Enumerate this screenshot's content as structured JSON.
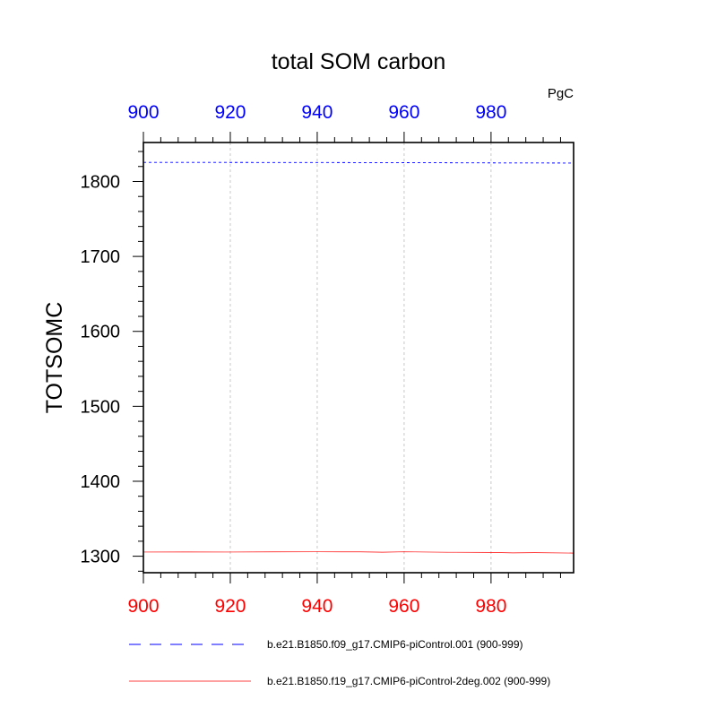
{
  "chart_data": {
    "type": "line",
    "title": "total SOM carbon",
    "ylabel": "TOTSOMC",
    "units": "PgC",
    "xlim": [
      900,
      999
    ],
    "ylim": [
      1278,
      1852
    ],
    "x_ticks": [
      900,
      920,
      940,
      960,
      980
    ],
    "y_ticks": [
      1300,
      1400,
      1500,
      1600,
      1700,
      1800
    ],
    "x_tick_labels": [
      "900",
      "920",
      "940",
      "960",
      "980"
    ],
    "y_tick_labels": [
      "1300",
      "1400",
      "1500",
      "1600",
      "1700",
      "1800"
    ],
    "grid": "vertical dotted at major x ticks",
    "colors": {
      "top_axis_labels": "#0000ff",
      "bottom_axis_labels": "#ff0000"
    },
    "series": [
      {
        "name": "b.e21.B1850.f09_g17.CMIP6-piControl.001 (900-999)",
        "color": "#0000ff",
        "dash": "dashed",
        "x": [
          900,
          920,
          940,
          960,
          980,
          999
        ],
        "y": [
          1825.5,
          1825.4,
          1825.3,
          1825.1,
          1824.8,
          1824.6
        ]
      },
      {
        "name": "b.e21.B1850.f19_g17.CMIP6-piControl-2deg.002 (900-999)",
        "color": "#ff0000",
        "dash": "solid",
        "x": [
          900,
          910,
          920,
          930,
          940,
          950,
          955,
          960,
          970,
          980,
          985,
          990,
          999
        ],
        "y": [
          1305.6,
          1305.7,
          1305.6,
          1305.8,
          1305.9,
          1305.8,
          1305.4,
          1305.9,
          1305.3,
          1305.1,
          1304.5,
          1304.8,
          1304.2
        ]
      }
    ],
    "legend_position": "bottom"
  }
}
